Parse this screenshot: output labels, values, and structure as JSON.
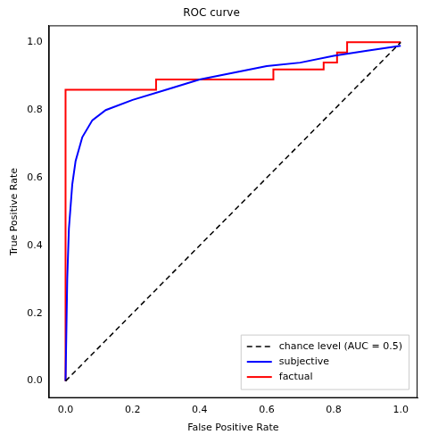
{
  "chart_data": {
    "type": "line",
    "title": "ROC curve",
    "x_label": "False Positive Rate",
    "y_label": "True Positive Rate",
    "xlim": [
      -0.05,
      1.05
    ],
    "ylim": [
      -0.05,
      1.05
    ],
    "xticks": [
      {
        "value": 0,
        "label": "0.0"
      },
      0.2,
      0.4,
      0.6,
      0.8,
      {
        "value": 1,
        "label": "1.0"
      }
    ],
    "yticks": [
      {
        "value": 0,
        "label": "0.0"
      },
      0.2,
      0.4,
      0.6,
      0.8,
      {
        "value": 1,
        "label": "1.0"
      }
    ],
    "grid": false,
    "legend": "lower right",
    "series": [
      {
        "name": "chance level (AUC = 0.5)",
        "color": "#000000",
        "line_style": "dashed",
        "x": [
          0,
          1
        ],
        "values": [
          0,
          1
        ]
      },
      {
        "name": "subjective",
        "color": "#0000ff",
        "line_style": "solid",
        "x": [
          0,
          0.005,
          0.01,
          0.02,
          0.03,
          0.05,
          0.08,
          0.12,
          0.2,
          0.3,
          0.4,
          0.5,
          0.6,
          0.7,
          0.8,
          0.9,
          1
        ],
        "values": [
          0,
          0.3,
          0.45,
          0.58,
          0.65,
          0.72,
          0.77,
          0.8,
          0.83,
          0.86,
          0.89,
          0.91,
          0.93,
          0.94,
          0.96,
          0.975,
          0.99
        ]
      },
      {
        "name": "factual",
        "color": "#ff0000",
        "line_style": "solid",
        "x": [
          0,
          0,
          0.27,
          0.27,
          0.62,
          0.62,
          0.77,
          0.77,
          0.81,
          0.81,
          0.84,
          0.84,
          1
        ],
        "values": [
          0,
          0.86,
          0.86,
          0.89,
          0.89,
          0.92,
          0.92,
          0.94,
          0.94,
          0.97,
          0.97,
          1,
          1
        ]
      }
    ]
  }
}
